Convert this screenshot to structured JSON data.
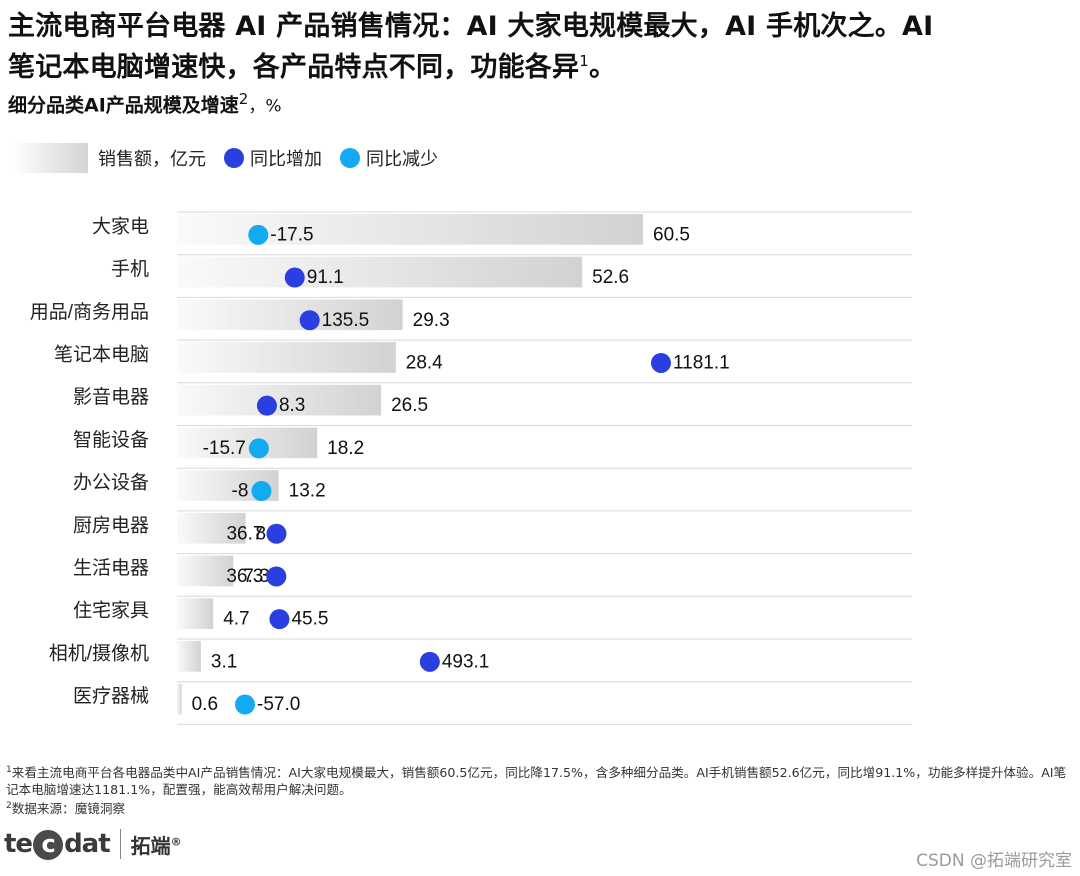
{
  "header": {
    "title_line1": "主流电商平台电器 AI 产品销售情况：AI 大家电规模最大，AI 手机次之。AI",
    "title_line2": "笔记本电脑增速快，各产品特点不同，功能各异",
    "title_sup": "1",
    "title_end": "。",
    "subtitle": "细分品类AI产品规模及增速",
    "subtitle_sup": "2",
    "subtitle_unit": "，%"
  },
  "legend": {
    "bar_label": "销售额，亿元",
    "increase_label": "同比增加",
    "decrease_label": "同比减少"
  },
  "colors": {
    "increase": "#2a3fe0",
    "decrease": "#12aaf0",
    "bar_dark": "#d2d2d2",
    "bar_light": "#fafafa",
    "grid": "#d8d8d8"
  },
  "chart_data": {
    "type": "bar",
    "orientation": "horizontal",
    "categories": [
      "大家电",
      "手机",
      "用品/商务用品",
      "笔记本电脑",
      "影音电器",
      "智能设备",
      "办公设备",
      "厨房电器",
      "生活电器",
      "住宅家具",
      "相机/摄像机",
      "医疗器械"
    ],
    "series": [
      {
        "name": "销售额，亿元",
        "values": [
          60.5,
          52.6,
          29.3,
          28.4,
          26.5,
          18.2,
          13.2,
          8.9,
          7.3,
          4.7,
          3.1,
          0.6
        ],
        "labels": [
          "60.5",
          "52.6",
          "29.3",
          "28.4",
          "26.5",
          "18.2",
          "13.2",
          "8.9",
          "7.3",
          "4.7",
          "3.1",
          "0.6"
        ]
      },
      {
        "name": "同比增速，%",
        "values": [
          -17.5,
          91.1,
          135.5,
          1181.1,
          8.3,
          -15.7,
          -8,
          36.7,
          36.3,
          45.5,
          493.1,
          -57.0
        ],
        "labels": [
          "-17.5",
          "91.1",
          "135.5",
          "1181.1",
          "8.3",
          "-15.7",
          "-8",
          "36.7",
          "36.3",
          "45.5",
          "493.1",
          "-57.0"
        ]
      }
    ],
    "legend_position": "top-left",
    "grid": true
  },
  "footnotes": {
    "note1_sup": "1",
    "note1": "来看主流电商平台各电器品类中AI产品销售情况：AI大家电规模最大，销售额60.5亿元，同比降17.5%，含多种细分品类。AI手机销售额52.6亿元，同比增91.1%，功能多样提升体验。AI笔记本电脑增速达1181.1%，配置强，能高效帮用户解决问题。",
    "note2_sup": "2",
    "note2": "数据来源：魔镜洞察"
  },
  "brand": {
    "logo_text": "tecdat",
    "logo_cn": "拓端",
    "logo_mark": "®",
    "watermark": "CSDN @拓端研究室"
  }
}
